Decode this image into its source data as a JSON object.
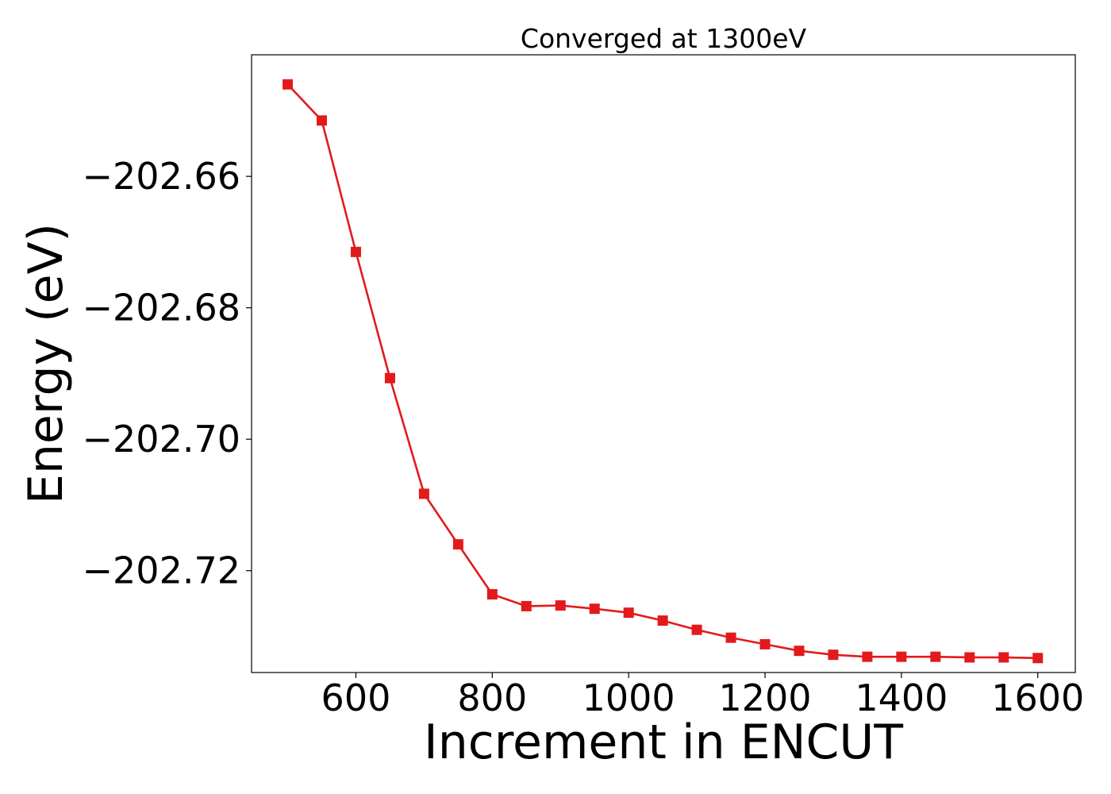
{
  "chart_data": {
    "type": "line",
    "title": "Converged at 1300eV",
    "xlabel": "Increment in ENCUT",
    "ylabel": "Energy (eV)",
    "xlim": [
      447,
      1655
    ],
    "ylim": [
      -202.7355,
      -202.6415
    ],
    "xticks": [
      600,
      800,
      1000,
      1200,
      1400,
      1600
    ],
    "yticks": [
      -202.66,
      -202.68,
      -202.7,
      -202.72
    ],
    "ytick_labels": [
      "−202.66",
      "−202.68",
      "−202.70",
      "−202.72"
    ],
    "grid": false,
    "marker": "square",
    "color": "#e31a1c",
    "series": [
      {
        "x": [
          500,
          550,
          600,
          650,
          700,
          750,
          800,
          850,
          900,
          950,
          1000,
          1050,
          1100,
          1150,
          1200,
          1250,
          1300,
          1350,
          1400,
          1450,
          1500,
          1550,
          1600
        ],
        "y": [
          -202.646,
          -202.6515,
          -202.6715,
          -202.6907,
          -202.7083,
          -202.716,
          -202.7236,
          -202.7254,
          -202.7253,
          -202.7258,
          -202.7264,
          -202.7276,
          -202.729,
          -202.7302,
          -202.7312,
          -202.7322,
          -202.7328,
          -202.7331,
          -202.7331,
          -202.7331,
          -202.7332,
          -202.7332,
          -202.7333
        ]
      }
    ]
  }
}
